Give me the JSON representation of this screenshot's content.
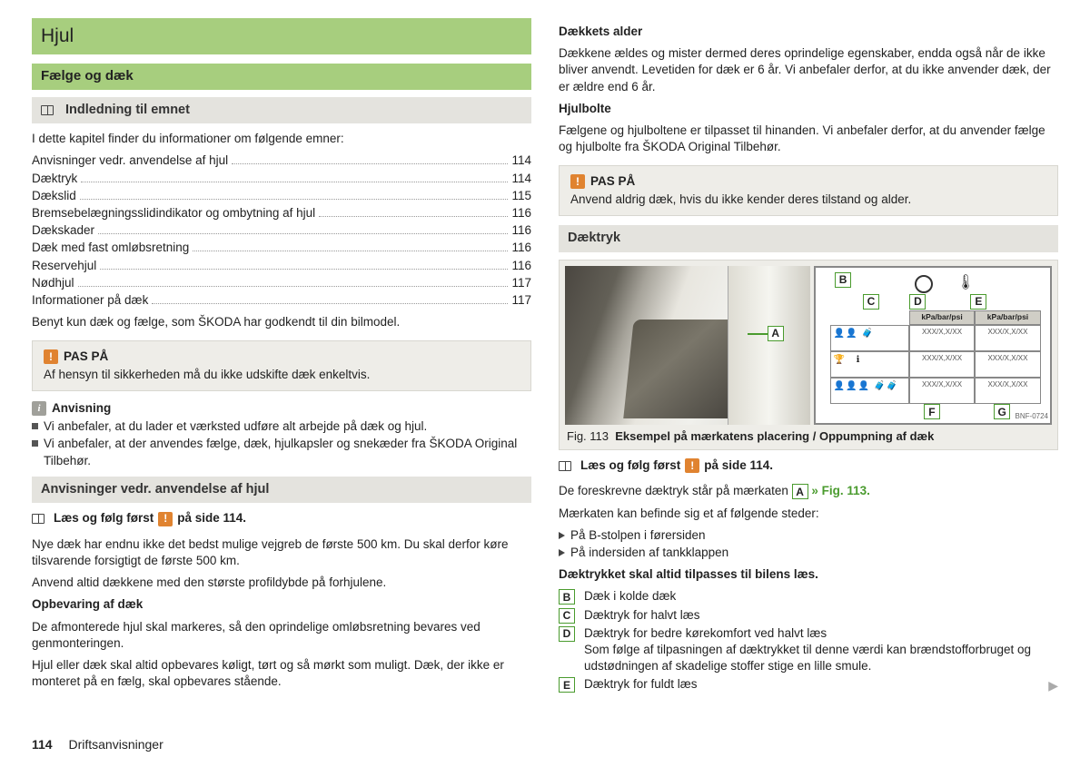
{
  "left": {
    "main_title": "Hjul",
    "sub_title": "Fælge og dæk",
    "intro_heading": "Indledning til emnet",
    "intro_text": "I dette kapitel finder du informationer om følgende emner:",
    "toc": [
      {
        "label": "Anvisninger vedr. anvendelse af hjul",
        "page": "114"
      },
      {
        "label": "Dæktryk",
        "page": "114"
      },
      {
        "label": "Dækslid",
        "page": "115"
      },
      {
        "label": "Bremsebelægningsslidindikator og ombytning af hjul",
        "page": "116"
      },
      {
        "label": "Dækskader",
        "page": "116"
      },
      {
        "label": "Dæk med fast omløbsretning",
        "page": "116"
      },
      {
        "label": "Reservehjul",
        "page": "116"
      },
      {
        "label": "Nødhjul",
        "page": "117"
      },
      {
        "label": "Informationer på dæk",
        "page": "117"
      }
    ],
    "after_toc": "Benyt kun dæk og fælge, som ŠKODA har godkendt til din bilmodel.",
    "warn1_title": "PAS PÅ",
    "warn1_body": "Af hensyn til sikkerheden må du ikke udskifte dæk enkeltvis.",
    "note_title": "Anvisning",
    "note_items": [
      "Vi anbefaler, at du lader et værksted udføre alt arbejde på dæk og hjul.",
      "Vi anbefaler, at der anvendes fælge, dæk, hjulkapsler og snekæder fra ŠKODA Original Tilbehør."
    ],
    "sec2_heading": "Anvisninger vedr. anvendelse af hjul",
    "read_first_pre": "Læs og følg først",
    "read_first_post": "på side 114.",
    "p1": "Nye dæk har endnu ikke det bedst mulige vejgreb de første 500 km. Du skal derfor køre tilsvarende forsigtigt de første 500 km.",
    "p2": "Anvend altid dækkene med den største profildybde på forhjulene.",
    "h_storage": "Opbevaring af dæk",
    "p3": "De afmonterede hjul skal markeres, så den oprindelige omløbsretning bevares ved genmonteringen.",
    "p4": "Hjul eller dæk skal altid opbevares køligt, tørt og så mørkt som muligt. Dæk, der ikke er monteret på en fælg, skal opbevares stående."
  },
  "right": {
    "h_age": "Dækkets alder",
    "p_age": "Dækkene ældes og mister dermed deres oprindelige egenskaber, endda også når de ikke bliver anvendt. Levetiden for dæk er 6 år. Vi anbefaler derfor, at du ikke anvender dæk, der er ældre end 6 år.",
    "h_bolt": "Hjulbolte",
    "p_bolt": "Fælgene og hjulboltene er tilpasset til hinanden. Vi anbefaler derfor, at du anvender fælge og hjulbolte fra ŠKODA Original Tilbehør.",
    "warn2_title": "PAS PÅ",
    "warn2_body": "Anvend aldrig dæk, hvis du ikke kender deres tilstand og alder.",
    "sec_pressure": "Dæktryk",
    "fig_num": "Fig. 113",
    "fig_caption": "Eksempel på mærkatens placering / Oppumpning af dæk",
    "diag_hdr1": "kPa/bar/psi",
    "diag_hdr2": "kPa/bar/psi",
    "diag_val": "XXX/X,X/XX",
    "bnf": "BNF-0724",
    "labels": {
      "A": "A",
      "B": "B",
      "C": "C",
      "D": "D",
      "E": "E",
      "F": "F",
      "G": "G"
    },
    "read_first_pre": "Læs og følg først",
    "read_first_post": "på side 114.",
    "p_presc_pre": "De foreskrevne dæktryk står på mærkaten",
    "p_presc_post": "» Fig. 113.",
    "p_loc": "Mærkaten kan befinde sig et af følgende steder:",
    "loc_items": [
      "På B-stolpen i førersiden",
      "På indersiden af tankklappen"
    ],
    "p_adapt": "Dæktrykket skal altid tilpasses til bilens læs.",
    "def_B": "Dæk i kolde dæk",
    "def_C": "Dæktryk for halvt læs",
    "def_D": "Dæktryk for bedre kørekomfort ved halvt læs",
    "def_D2": "Som følge af tilpasningen af dæktrykket til denne værdi kan brændstofforbruget og udstødningen af skadelige stoffer stige en lille smule.",
    "def_E": "Dæktryk for fuldt læs"
  },
  "footer": {
    "page": "114",
    "section": "Driftsanvisninger"
  }
}
